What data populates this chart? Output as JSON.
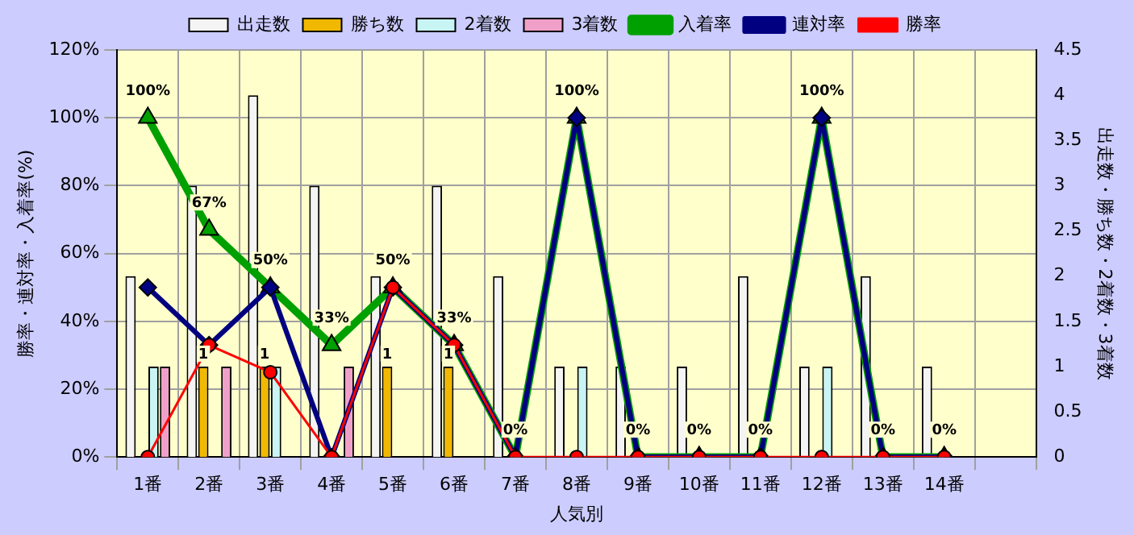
{
  "chart_data": {
    "type": "bar",
    "xlabel": "人気別",
    "ylabel": "勝率・連対率・入着率(%)",
    "y2label": "出走数・勝ち数・2着数・3着数",
    "categories": [
      "1番",
      "2番",
      "3番",
      "4番",
      "5番",
      "6番",
      "7番",
      "8番",
      "9番",
      "10番",
      "11番",
      "12番",
      "13番",
      "14番",
      null
    ],
    "series": [
      {
        "name": "出走数",
        "axis": "y2",
        "color": "#f4f4f4",
        "values": [
          2,
          3,
          4,
          3,
          2,
          3,
          2,
          1,
          1,
          1,
          2,
          1,
          2,
          1,
          null
        ]
      },
      {
        "name": "勝ち数",
        "axis": "y2",
        "color": "#f0b800",
        "values": [
          0,
          1,
          1,
          0,
          1,
          1,
          0,
          0,
          0,
          0,
          0,
          0,
          0,
          0,
          null
        ],
        "value_labels": [
          null,
          "1",
          "1",
          null,
          "1",
          "1",
          null,
          null,
          null,
          null,
          null,
          null,
          null,
          null,
          null
        ]
      },
      {
        "name": "2着数",
        "axis": "y2",
        "color": "#c8f4f4",
        "values": [
          1,
          0,
          1,
          0,
          0,
          0,
          0,
          1,
          0,
          0,
          0,
          1,
          0,
          0,
          null
        ]
      },
      {
        "name": "3着数",
        "axis": "y2",
        "color": "#f0a0c8",
        "values": [
          1,
          1,
          0,
          1,
          0,
          0,
          0,
          0,
          0,
          0,
          0,
          0,
          0,
          0,
          null
        ]
      },
      {
        "name": "入着率",
        "type": "line",
        "marker": "triangle",
        "color": "#00a000",
        "values": [
          100,
          67,
          50,
          33,
          50,
          33,
          0,
          100,
          0,
          0,
          0,
          100,
          0,
          0,
          null
        ],
        "value_labels": [
          "100%",
          "67%",
          "50%",
          "33%",
          "50%",
          "33%",
          "0%",
          "100%",
          "0%",
          "0%",
          "0%",
          "100%",
          "0%",
          "0%",
          null
        ]
      },
      {
        "name": "連対率",
        "type": "line",
        "marker": "diamond",
        "color": "#000080",
        "values": [
          50,
          33,
          50,
          0,
          50,
          33,
          0,
          100,
          0,
          0,
          0,
          100,
          0,
          0,
          null
        ]
      },
      {
        "name": "勝率",
        "type": "line",
        "marker": "circle",
        "color": "#ff0000",
        "values": [
          0,
          33,
          25,
          0,
          50,
          33,
          0,
          0,
          0,
          0,
          0,
          0,
          0,
          0,
          null
        ]
      }
    ],
    "ylim": [
      0,
      120
    ],
    "yticks": [
      {
        "value": 0,
        "label": "0%"
      },
      {
        "value": 20,
        "label": "20%"
      },
      {
        "value": 40,
        "label": "40%"
      },
      {
        "value": 60,
        "label": "60%"
      },
      {
        "value": 80,
        "label": "80%"
      },
      {
        "value": 100,
        "label": "100%"
      },
      {
        "value": 120,
        "label": "120%"
      }
    ],
    "y2lim": [
      0,
      4.5
    ],
    "y2ticks": [
      0,
      0.5,
      1,
      1.5,
      2,
      2.5,
      3,
      3.5,
      4,
      4.5
    ],
    "grid": true,
    "legend": "top",
    "line_style": "solid"
  }
}
